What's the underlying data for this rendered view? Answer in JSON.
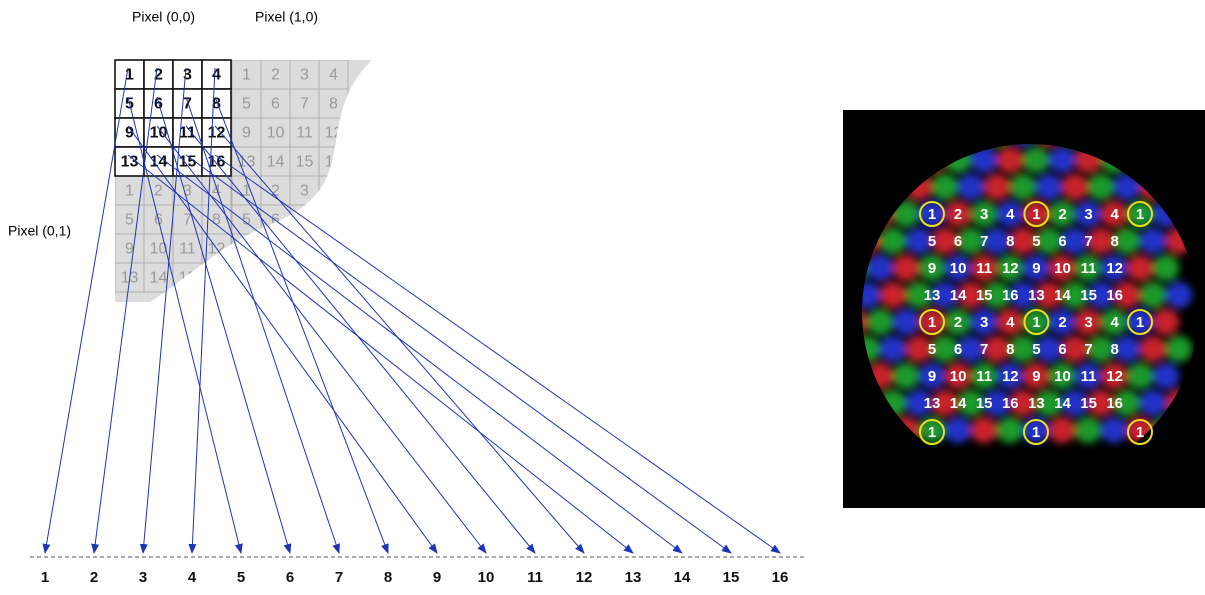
{
  "labels": {
    "pixel_00": "Pixel (0,0)",
    "pixel_10": "Pixel (1,0)",
    "pixel_01": "Pixel (0,1)"
  },
  "subpixel_grid": [
    "1",
    "2",
    "3",
    "4",
    "5",
    "6",
    "7",
    "8",
    "9",
    "10",
    "11",
    "12",
    "13",
    "14",
    "15",
    "16"
  ],
  "neighbor_right": [
    "1",
    "2",
    "3",
    "4",
    "5",
    "6",
    "7",
    "8",
    "9",
    "10",
    "11",
    "12",
    "13",
    "14",
    "15",
    "16"
  ],
  "neighbor_below": [
    "1",
    "2",
    "3",
    "4",
    "5",
    "6",
    "7",
    "8",
    "9",
    "10",
    "11",
    "12",
    "13",
    "14",
    "15",
    "16"
  ],
  "neighbor_diagonal": [
    "1",
    "2",
    "3",
    "4",
    "5",
    "6",
    "7",
    "8",
    "9",
    "10",
    "11",
    "12",
    "13",
    "14",
    "15",
    "16"
  ],
  "output_positions": [
    "1",
    "2",
    "3",
    "4",
    "5",
    "6",
    "7",
    "8",
    "9",
    "10",
    "11",
    "12",
    "13",
    "14",
    "15",
    "16"
  ],
  "mosaic": {
    "rows": [
      [
        "1",
        "2",
        "3",
        "4",
        "1",
        "2",
        "3",
        "4",
        "1"
      ],
      [
        "5",
        "6",
        "7",
        "8",
        "5",
        "6",
        "7",
        "8"
      ],
      [
        "9",
        "10",
        "11",
        "12",
        "9",
        "10",
        "11",
        "12"
      ],
      [
        "13",
        "14",
        "15",
        "16",
        "13",
        "14",
        "15",
        "16"
      ],
      [
        "1",
        "2",
        "3",
        "4",
        "1",
        "2",
        "3",
        "4",
        "1"
      ],
      [
        "5",
        "6",
        "7",
        "8",
        "5",
        "6",
        "7",
        "8"
      ],
      [
        "9",
        "10",
        "11",
        "12",
        "9",
        "10",
        "11",
        "12"
      ],
      [
        "13",
        "14",
        "15",
        "16",
        "13",
        "14",
        "15",
        "16"
      ]
    ],
    "bottom_row": [
      "1",
      "1",
      "1"
    ]
  }
}
